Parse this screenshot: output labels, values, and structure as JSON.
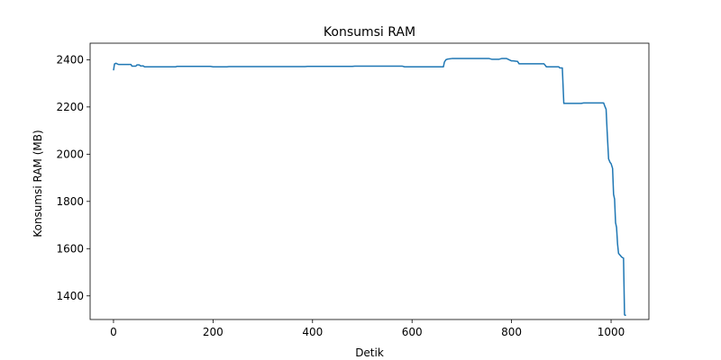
{
  "chart_data": {
    "type": "line",
    "title": "Konsumsi RAM",
    "xlabel": "Detik",
    "ylabel": "Konsumsi RAM (MB)",
    "xlim": [
      -47,
      1076
    ],
    "ylim": [
      1300,
      2470
    ],
    "xticks": [
      0,
      200,
      400,
      600,
      800,
      1000
    ],
    "yticks": [
      1400,
      1600,
      1800,
      2000,
      2200,
      2400
    ],
    "grid": false,
    "series": [
      {
        "color": "#1f77b4",
        "x": [
          0,
          2,
          5,
          10,
          12,
          35,
          37,
          45,
          47,
          52,
          54,
          60,
          62,
          125,
          128,
          195,
          200,
          228,
          232,
          385,
          390,
          480,
          485,
          580,
          585,
          663,
          665,
          668,
          672,
          680,
          755,
          760,
          775,
          780,
          790,
          800,
          803,
          812,
          815,
          865,
          870,
          895,
          897,
          902,
          905,
          940,
          945,
          985,
          988,
          990,
          992,
          995,
          998,
          1000,
          1003,
          1005,
          1007,
          1009,
          1011,
          1013,
          1015,
          1017,
          1019,
          1021,
          1023,
          1025,
          1027,
          1028,
          1030
        ],
        "y": [
          2355,
          2382,
          2385,
          2380,
          2380,
          2380,
          2373,
          2373,
          2378,
          2378,
          2374,
          2374,
          2370,
          2370,
          2372,
          2372,
          2370,
          2370,
          2371,
          2371,
          2372,
          2372,
          2373,
          2373,
          2370,
          2370,
          2390,
          2400,
          2403,
          2405,
          2405,
          2402,
          2402,
          2405,
          2405,
          2395,
          2395,
          2393,
          2383,
          2383,
          2370,
          2370,
          2365,
          2365,
          2215,
          2215,
          2217,
          2217,
          2200,
          2190,
          2100,
          1980,
          1965,
          1960,
          1940,
          1830,
          1810,
          1710,
          1690,
          1620,
          1580,
          1575,
          1570,
          1565,
          1562,
          1560,
          1320,
          1318,
          1318
        ]
      }
    ]
  }
}
